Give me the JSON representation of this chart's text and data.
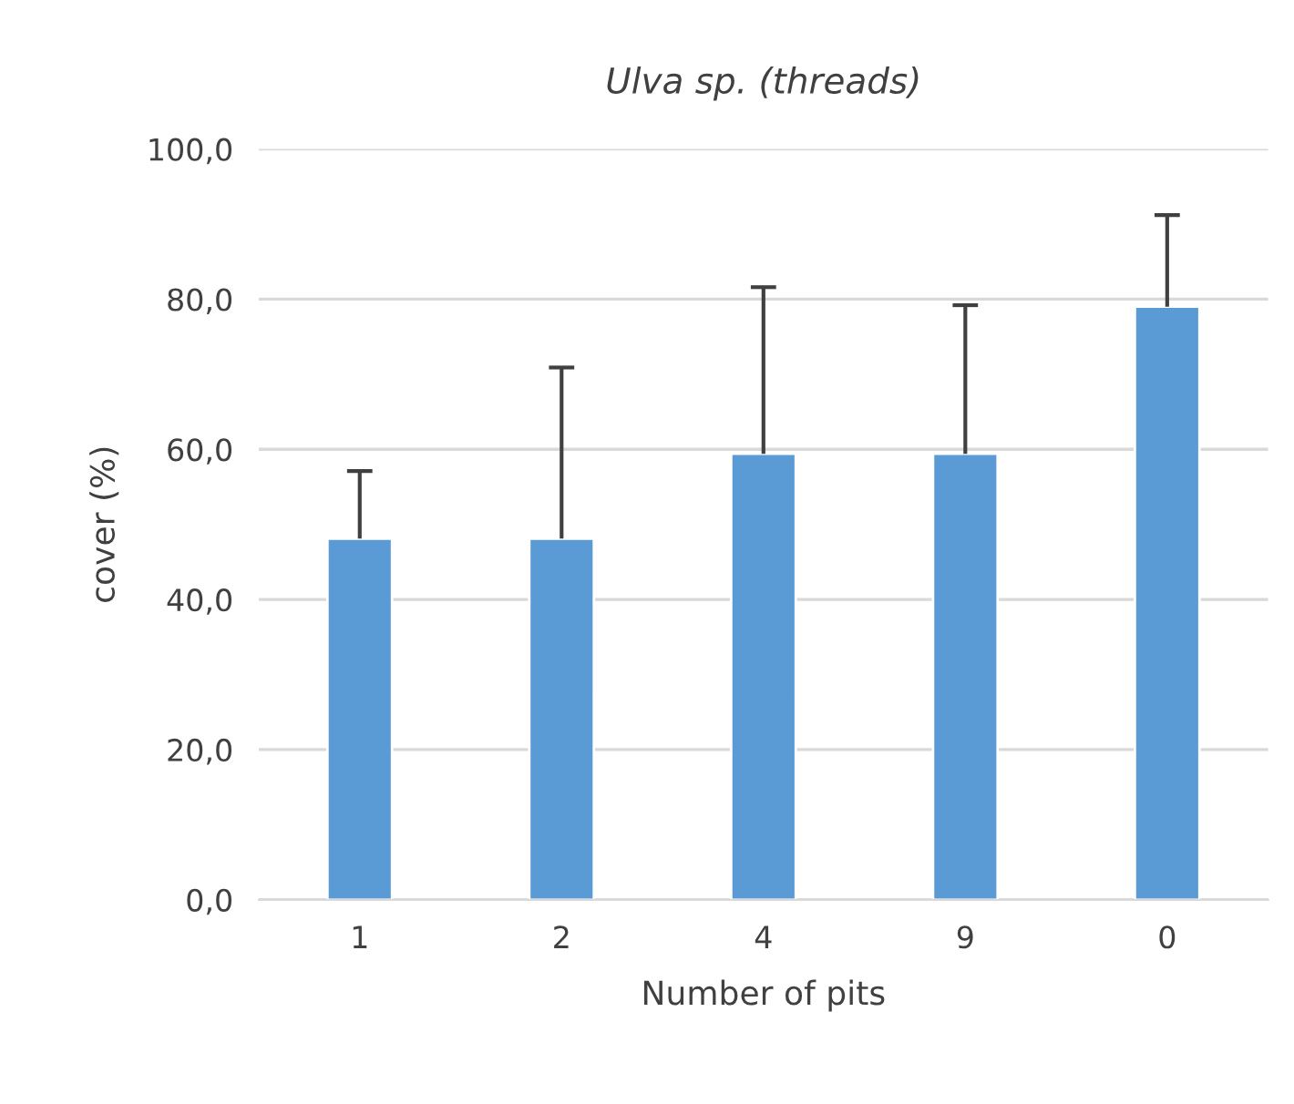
{
  "chart_data": {
    "type": "bar",
    "title": "Ulva sp. (threads)",
    "xlabel": "Number of pits",
    "ylabel": "cover (%)",
    "categories": [
      "1",
      "2",
      "4",
      "9",
      "0"
    ],
    "values": [
      48.1,
      48.1,
      59.4,
      59.4,
      79.0
    ],
    "errors": [
      [
        48.1,
        57.1
      ],
      [
        48.1,
        70.9
      ],
      [
        59.4,
        81.6
      ],
      [
        59.4,
        79.2
      ],
      [
        79.0,
        91.2
      ]
    ],
    "color": "#5b9bd5",
    "ylim": [
      0,
      100
    ],
    "yticks": [
      {
        "value": 0,
        "label": "0,0"
      },
      {
        "value": 20,
        "label": "20,0"
      },
      {
        "value": 40,
        "label": "40,0"
      },
      {
        "value": 60,
        "label": "60,0"
      },
      {
        "value": 80,
        "label": "80,0"
      },
      {
        "value": 100,
        "label": "100,0"
      }
    ],
    "grid": "y",
    "legend": false
  }
}
